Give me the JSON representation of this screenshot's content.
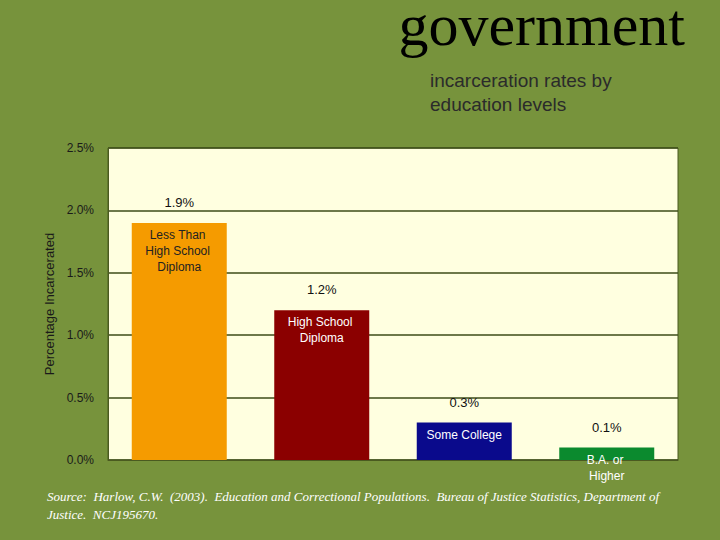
{
  "chart_data": {
    "type": "bar",
    "title": "government",
    "subtitle": "incarceration rates by education levels",
    "y_label": "Percentage Incarcerated",
    "categories": [
      "Less Than High School Diploma",
      "High School Diploma",
      "Some College",
      "B.A. or Higher"
    ],
    "values": [
      1.9,
      1.2,
      0.3,
      0.1
    ],
    "value_labels": [
      "1.9%",
      "1.2%",
      "0.3%",
      "0.1%"
    ],
    "colors": [
      "#F59B00",
      "#8B0000",
      "#0A0A8C",
      "#0B8A2E"
    ],
    "ylim": [
      0,
      2.5
    ],
    "yticks": [
      {
        "value": 0,
        "label": "0.0%"
      },
      {
        "value": 0.5,
        "label": "0.5%"
      },
      {
        "value": 1,
        "label": "1.0%"
      },
      {
        "value": 1.5,
        "label": "1.5%"
      },
      {
        "value": 2,
        "label": "2.0%"
      },
      {
        "value": 2.5,
        "label": "2.5%"
      }
    ],
    "grid": true,
    "data_labels": true,
    "tick_labels": "y",
    "source": "Source:  Harlow, C.W.  (2003).  Education and Correctional Populations.  Bureau of Justice Statistics, Department of Justice.  NCJ195670."
  }
}
